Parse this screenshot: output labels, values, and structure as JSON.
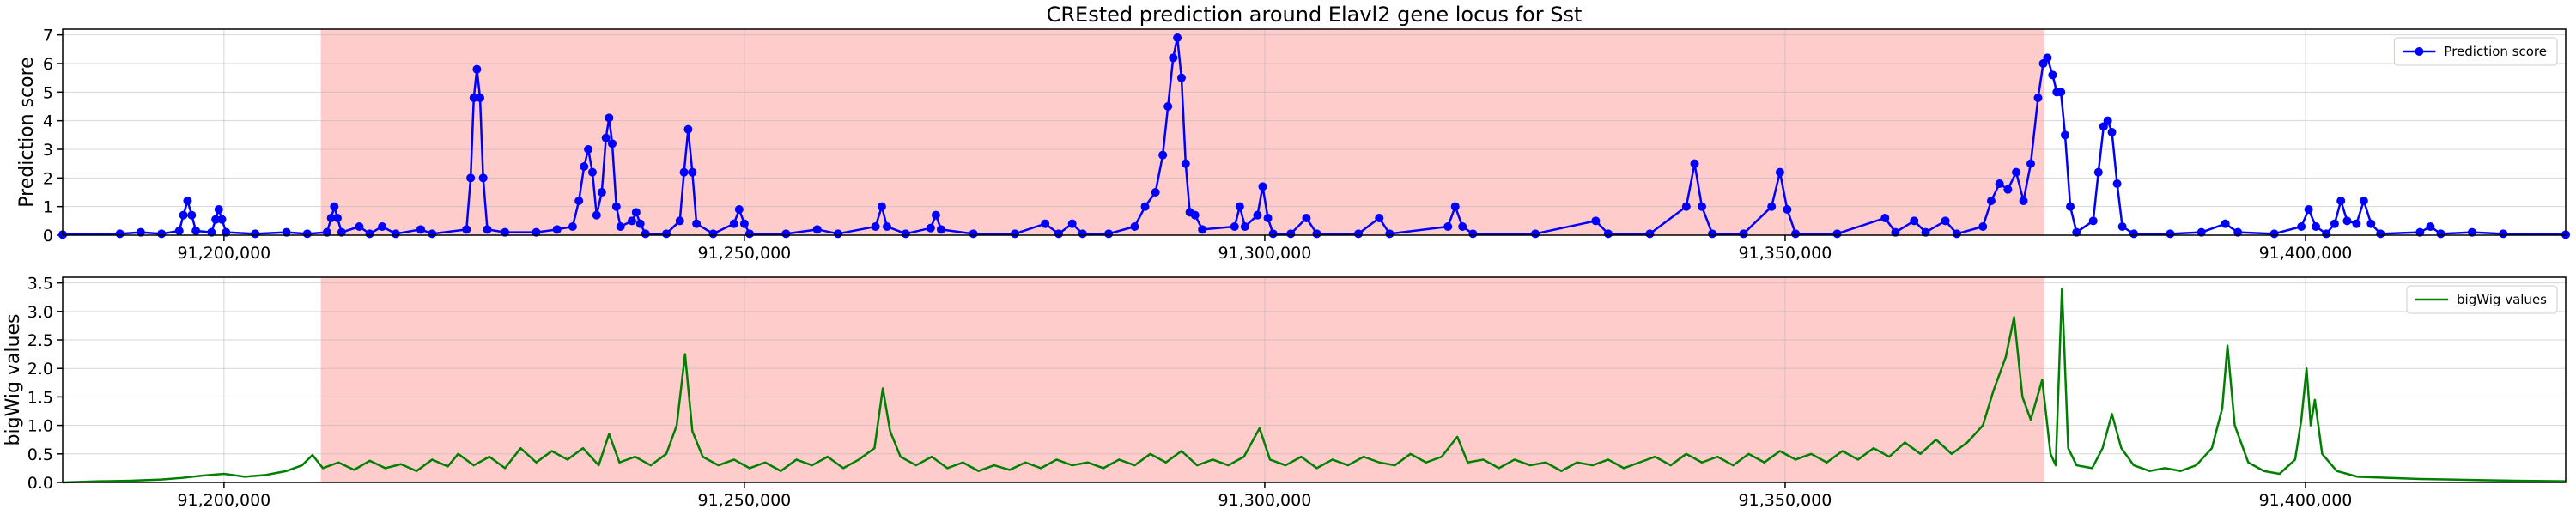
{
  "chart_data": [
    {
      "type": "line",
      "title": "CREsted prediction around Elavl2 gene locus for Sst",
      "ylabel": "Prediction score",
      "xlim": [
        91184500,
        91425000
      ],
      "ylim": [
        0,
        7.2
      ],
      "xticks": [
        {
          "value": 91200000,
          "label": "91,200,000"
        },
        {
          "value": 91250000,
          "label": "91,250,000"
        },
        {
          "value": 91300000,
          "label": "91,300,000"
        },
        {
          "value": 91350000,
          "label": "91,350,000"
        },
        {
          "value": 91400000,
          "label": "91,400,000"
        }
      ],
      "yticks": [
        0,
        1,
        2,
        3,
        4,
        5,
        6,
        7
      ],
      "grid": true,
      "legend": "upper right",
      "span": {
        "x": [
          91209300,
          91374900
        ],
        "color": "#ffcccc"
      },
      "x": [
        91184500,
        91190000,
        91192000,
        91194000,
        91195700,
        91196100,
        91196500,
        91196900,
        91197300,
        91198800,
        91199200,
        91199500,
        91199800,
        91200200,
        91203000,
        91206000,
        91208000,
        91209900,
        91210300,
        91210600,
        91210900,
        91211300,
        91213000,
        91214000,
        91215200,
        91216500,
        91218900,
        91220000,
        91223300,
        91223700,
        91224000,
        91224300,
        91224600,
        91224900,
        91225300,
        91227000,
        91230000,
        91232000,
        91233500,
        91234100,
        91234600,
        91235000,
        91235400,
        91235800,
        91236300,
        91236700,
        91237000,
        91237300,
        91237700,
        91238100,
        91239200,
        91239600,
        91240000,
        91240500,
        91242500,
        91243800,
        91244200,
        91244600,
        91245000,
        91245400,
        91247000,
        91249000,
        91249500,
        91250000,
        91250500,
        91254000,
        91257000,
        91259000,
        91262600,
        91263200,
        91263700,
        91265500,
        91267900,
        91268400,
        91268900,
        91272000,
        91276000,
        91278900,
        91280200,
        91281500,
        91282500,
        91285000,
        91287500,
        91288500,
        91289500,
        91290200,
        91290700,
        91291200,
        91291600,
        91292000,
        91292400,
        91292800,
        91293300,
        91294000,
        91297100,
        91297600,
        91298100,
        91299300,
        91299800,
        91300300,
        91300800,
        91302500,
        91304000,
        91305000,
        91309000,
        91311000,
        91312000,
        91317600,
        91318300,
        91319000,
        91320000,
        91326000,
        91331800,
        91333000,
        91337000,
        91340500,
        91341300,
        91342000,
        91343000,
        91346000,
        91348700,
        91349500,
        91350200,
        91351000,
        91355000,
        91359600,
        91360600,
        91362400,
        91363500,
        91365400,
        91366500,
        91369000,
        91369800,
        91370600,
        91371400,
        91372200,
        91372900,
        91373600,
        91374300,
        91374800,
        91375200,
        91375700,
        91376100,
        91376500,
        91376900,
        91377400,
        91378000,
        91379600,
        91380100,
        91380600,
        91381000,
        91381400,
        91381900,
        91382400,
        91383500,
        91387000,
        91390000,
        91392300,
        91393500,
        91397000,
        91399600,
        91400300,
        91401000,
        91402000,
        91402800,
        91403400,
        91404000,
        91404900,
        91405600,
        91406300,
        91407200,
        91411000,
        91412000,
        91413000,
        91416000,
        91419000,
        91425000
      ],
      "series": [
        {
          "name": "Prediction score",
          "color": "#0000ff",
          "marker": "o",
          "values": [
            0.02,
            0.05,
            0.1,
            0.05,
            0.15,
            0.7,
            1.2,
            0.7,
            0.15,
            0.1,
            0.55,
            0.9,
            0.55,
            0.1,
            0.05,
            0.1,
            0.05,
            0.1,
            0.6,
            1.0,
            0.6,
            0.1,
            0.3,
            0.05,
            0.3,
            0.05,
            0.2,
            0.05,
            0.2,
            2.0,
            4.8,
            5.8,
            4.8,
            2.0,
            0.2,
            0.1,
            0.1,
            0.2,
            0.3,
            1.2,
            2.4,
            3.0,
            2.2,
            0.7,
            1.5,
            3.4,
            4.1,
            3.2,
            1.0,
            0.3,
            0.5,
            0.8,
            0.4,
            0.05,
            0.05,
            0.5,
            2.2,
            3.7,
            2.2,
            0.4,
            0.05,
            0.4,
            0.9,
            0.4,
            0.05,
            0.05,
            0.2,
            0.05,
            0.3,
            1.0,
            0.3,
            0.05,
            0.25,
            0.7,
            0.2,
            0.05,
            0.05,
            0.4,
            0.05,
            0.4,
            0.05,
            0.05,
            0.3,
            1.0,
            1.5,
            2.8,
            4.5,
            6.2,
            6.9,
            5.5,
            2.5,
            0.8,
            0.7,
            0.2,
            0.3,
            1.0,
            0.3,
            0.7,
            1.7,
            0.6,
            0.05,
            0.05,
            0.6,
            0.05,
            0.05,
            0.6,
            0.05,
            0.3,
            1.0,
            0.3,
            0.05,
            0.05,
            0.5,
            0.05,
            0.05,
            1.0,
            2.5,
            1.0,
            0.05,
            0.05,
            1.0,
            2.2,
            0.9,
            0.05,
            0.05,
            0.6,
            0.1,
            0.5,
            0.1,
            0.5,
            0.05,
            0.3,
            1.2,
            1.8,
            1.6,
            2.2,
            1.2,
            2.5,
            4.8,
            6.0,
            6.2,
            5.6,
            5.0,
            5.0,
            3.5,
            1.0,
            0.1,
            0.5,
            2.2,
            3.8,
            4.0,
            3.6,
            1.8,
            0.3,
            0.05,
            0.05,
            0.1,
            0.4,
            0.1,
            0.05,
            0.3,
            0.9,
            0.3,
            0.05,
            0.4,
            1.2,
            0.5,
            0.4,
            1.2,
            0.4,
            0.05,
            0.1,
            0.3,
            0.05,
            0.1,
            0.05,
            0.02
          ]
        }
      ]
    },
    {
      "type": "line",
      "ylabel": "bigWig values",
      "xlim": [
        91184500,
        91425000
      ],
      "ylim": [
        0,
        3.6
      ],
      "xticks": [
        {
          "value": 91200000,
          "label": "91,200,000"
        },
        {
          "value": 91250000,
          "label": "91,250,000"
        },
        {
          "value": 91300000,
          "label": "91,300,000"
        },
        {
          "value": 91350000,
          "label": "91,350,000"
        },
        {
          "value": 91400000,
          "label": "91,400,000"
        }
      ],
      "yticks": [
        {
          "value": 0,
          "label": "0.0"
        },
        {
          "value": 0.5,
          "label": "0.5"
        },
        {
          "value": 1,
          "label": "1.0"
        },
        {
          "value": 1.5,
          "label": "1.5"
        },
        {
          "value": 2,
          "label": "2.0"
        },
        {
          "value": 2.5,
          "label": "2.5"
        },
        {
          "value": 3,
          "label": "3.0"
        },
        {
          "value": 3.5,
          "label": "3.5"
        }
      ],
      "grid": true,
      "legend": "upper right",
      "span": {
        "x": [
          91209300,
          91374900
        ],
        "color": "#ffcccc"
      },
      "x": [
        91184500,
        91188000,
        91191000,
        91194000,
        91196000,
        91198000,
        91200000,
        91202000,
        91204000,
        91206000,
        91207500,
        91208500,
        91209500,
        91211000,
        91212500,
        91214000,
        91215500,
        91217000,
        91218500,
        91220000,
        91221500,
        91222500,
        91224000,
        91225500,
        91227000,
        91228500,
        91230000,
        91231500,
        91233000,
        91234500,
        91236000,
        91237000,
        91238000,
        91239500,
        91241000,
        91242500,
        91243500,
        91244300,
        91245000,
        91246000,
        91247500,
        91249000,
        91250500,
        91252000,
        91253500,
        91255000,
        91256500,
        91258000,
        91259500,
        91261000,
        91262500,
        91263300,
        91264000,
        91265000,
        91266500,
        91268000,
        91269500,
        91271000,
        91272500,
        91274000,
        91275500,
        91277000,
        91278500,
        91280000,
        91281500,
        91283000,
        91284500,
        91286000,
        91287500,
        91289000,
        91290500,
        91292000,
        91293500,
        91295000,
        91296500,
        91298000,
        91299500,
        91300500,
        91302000,
        91303500,
        91305000,
        91306500,
        91308000,
        91309500,
        91311000,
        91312500,
        91314000,
        91315500,
        91317000,
        91318500,
        91319500,
        91321000,
        91322500,
        91324000,
        91325500,
        91327000,
        91328500,
        91330000,
        91331500,
        91333000,
        91334500,
        91336000,
        91337500,
        91339000,
        91340500,
        91342000,
        91343500,
        91345000,
        91346500,
        91348000,
        91349500,
        91351000,
        91352500,
        91354000,
        91355500,
        91357000,
        91358500,
        91360000,
        91361500,
        91363000,
        91364500,
        91366000,
        91367500,
        91369000,
        91370000,
        91371200,
        91372000,
        91372800,
        91373600,
        91374700,
        91375500,
        91376000,
        91376600,
        91377200,
        91378000,
        91379500,
        91380500,
        91381400,
        91382300,
        91383500,
        91385000,
        91386500,
        91388000,
        91389500,
        91391000,
        91392000,
        91392500,
        91393200,
        91394500,
        91396000,
        91397500,
        91399000,
        91399600,
        91400100,
        91400500,
        91400900,
        91401600,
        91403000,
        91405000,
        91408000,
        91411000,
        91414000,
        91417000,
        91420000,
        91425000
      ],
      "series": [
        {
          "name": "bigWig values",
          "color": "#008000",
          "values": [
            0.0,
            0.02,
            0.03,
            0.05,
            0.08,
            0.12,
            0.15,
            0.1,
            0.13,
            0.2,
            0.3,
            0.48,
            0.25,
            0.35,
            0.22,
            0.38,
            0.25,
            0.32,
            0.2,
            0.4,
            0.28,
            0.5,
            0.3,
            0.45,
            0.25,
            0.6,
            0.35,
            0.55,
            0.4,
            0.6,
            0.3,
            0.85,
            0.35,
            0.45,
            0.3,
            0.5,
            1.0,
            2.25,
            0.9,
            0.45,
            0.3,
            0.4,
            0.25,
            0.35,
            0.2,
            0.4,
            0.3,
            0.45,
            0.25,
            0.4,
            0.6,
            1.65,
            0.9,
            0.45,
            0.3,
            0.45,
            0.25,
            0.35,
            0.2,
            0.3,
            0.22,
            0.35,
            0.25,
            0.4,
            0.3,
            0.35,
            0.25,
            0.4,
            0.3,
            0.5,
            0.35,
            0.55,
            0.3,
            0.4,
            0.3,
            0.45,
            0.95,
            0.4,
            0.3,
            0.45,
            0.25,
            0.4,
            0.3,
            0.45,
            0.35,
            0.3,
            0.5,
            0.35,
            0.45,
            0.8,
            0.35,
            0.4,
            0.25,
            0.4,
            0.3,
            0.35,
            0.2,
            0.35,
            0.3,
            0.4,
            0.25,
            0.35,
            0.45,
            0.3,
            0.5,
            0.35,
            0.45,
            0.3,
            0.5,
            0.35,
            0.55,
            0.4,
            0.5,
            0.35,
            0.55,
            0.4,
            0.6,
            0.45,
            0.7,
            0.5,
            0.75,
            0.5,
            0.7,
            1.0,
            1.6,
            2.2,
            2.9,
            1.5,
            1.1,
            1.8,
            0.5,
            0.3,
            3.4,
            0.6,
            0.3,
            0.25,
            0.6,
            1.2,
            0.6,
            0.3,
            0.2,
            0.25,
            0.2,
            0.3,
            0.6,
            1.3,
            2.4,
            1.0,
            0.35,
            0.2,
            0.15,
            0.4,
            1.1,
            2.0,
            1.0,
            1.45,
            0.5,
            0.2,
            0.1,
            0.08,
            0.06,
            0.05,
            0.04,
            0.03,
            0.02
          ]
        }
      ]
    }
  ]
}
